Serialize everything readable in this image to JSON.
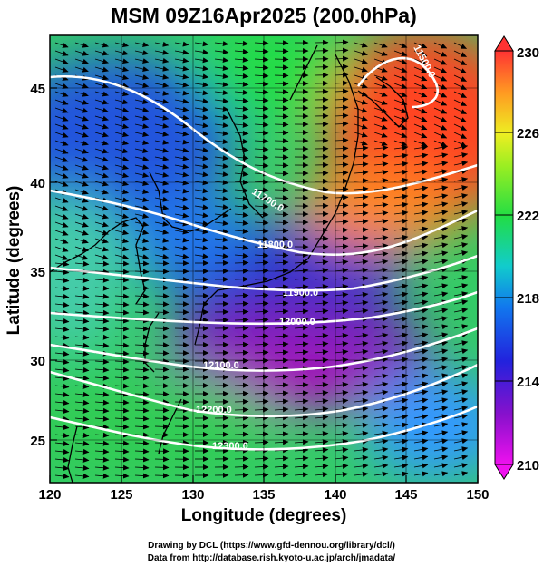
{
  "title": "MSM 09Z16Apr2025 (200.0hPa)",
  "axes": {
    "xlabel": "Longitude (degrees)",
    "ylabel": "Latitude  (degrees)",
    "x_ticks": [
      "120",
      "125",
      "130",
      "135",
      "140",
      "145",
      "150"
    ],
    "y_ticks": [
      "25",
      "30",
      "35",
      "40",
      "45"
    ],
    "xlim": [
      120,
      150
    ],
    "ylim": [
      22.4,
      47.6
    ]
  },
  "colorbar": {
    "labels": [
      "230",
      "226",
      "222",
      "218",
      "214",
      "210"
    ],
    "range": [
      210,
      230
    ]
  },
  "contours": [
    {
      "label": "11500.0"
    },
    {
      "label": "11700.0"
    },
    {
      "label": "11800.0"
    },
    {
      "label": "11900.0"
    },
    {
      "label": "12000.0"
    },
    {
      "label": "12100.0"
    },
    {
      "label": "12200.0"
    },
    {
      "label": "12300.0"
    }
  ],
  "credits": {
    "line1": "Drawing by DCL (https://www.gfd-dennou.org/library/dcl/)",
    "line2": "Data from http://database.rish.kyoto-u.ac.jp/arch/jmadata/"
  },
  "colors": {
    "high": "#ff3a2a",
    "mid": "#22dd44",
    "low": "#2222dd",
    "min": "#cc00cc",
    "contour": "#ffffff",
    "coast": "#000000"
  }
}
